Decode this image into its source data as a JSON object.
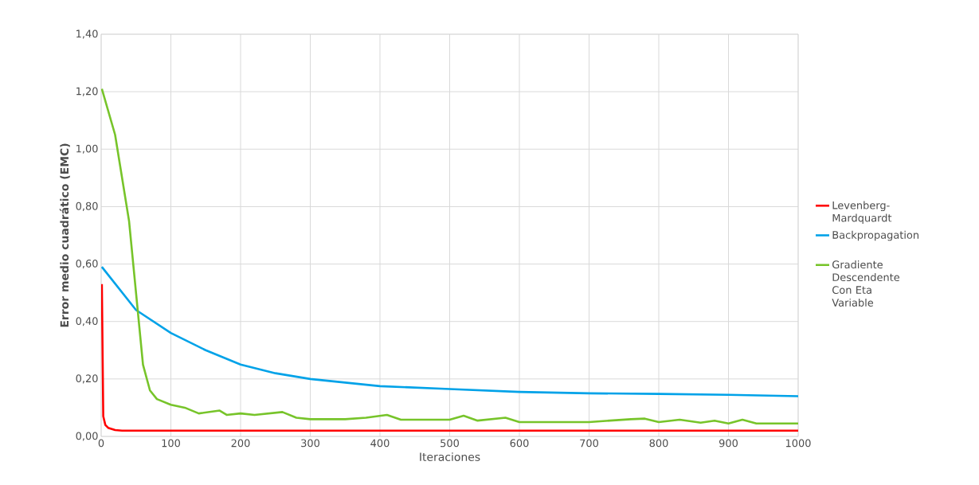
{
  "chart_data": {
    "type": "line",
    "xlabel": "Iteraciones",
    "ylabel": "Error medio cuadrático (EMC)",
    "xlim": [
      0,
      1000
    ],
    "ylim": [
      0,
      1.4
    ],
    "xticks": [
      0,
      100,
      200,
      300,
      400,
      500,
      600,
      700,
      800,
      900,
      1000
    ],
    "yticks": [
      {
        "value": 0,
        "label": "0,00"
      },
      {
        "value": 0.2,
        "label": "0,20"
      },
      {
        "value": 0.4,
        "label": "0,40"
      },
      {
        "value": 0.6,
        "label": "0,60"
      },
      {
        "value": 0.8,
        "label": "0,80"
      },
      {
        "value": 1.0,
        "label": "1,00"
      },
      {
        "value": 1.2,
        "label": "1,20"
      },
      {
        "value": 1.4,
        "label": "1,40"
      }
    ],
    "grid": true,
    "legend": "right",
    "marker": "none",
    "line_style": "solid",
    "series": [
      {
        "name": "Levenberg-Mardquardt",
        "color": "#ff0000",
        "x": [
          1,
          3,
          6,
          10,
          20,
          30,
          100,
          500,
          1000
        ],
        "values": [
          0.53,
          0.07,
          0.04,
          0.03,
          0.022,
          0.02,
          0.02,
          0.02,
          0.02
        ]
      },
      {
        "name": "Backpropagation",
        "color": "#00a2e8",
        "x": [
          1,
          50,
          100,
          150,
          200,
          250,
          300,
          400,
          500,
          600,
          700,
          800,
          900,
          1000
        ],
        "values": [
          0.59,
          0.44,
          0.36,
          0.3,
          0.25,
          0.22,
          0.2,
          0.175,
          0.165,
          0.155,
          0.15,
          0.148,
          0.145,
          0.14
        ]
      },
      {
        "name": "Gradiente Descendente Con Eta Variable",
        "color": "#77c42a",
        "x": [
          1,
          20,
          40,
          50,
          60,
          70,
          80,
          100,
          120,
          140,
          170,
          180,
          200,
          220,
          260,
          280,
          300,
          350,
          380,
          410,
          430,
          500,
          520,
          540,
          580,
          600,
          700,
          760,
          780,
          800,
          830,
          860,
          880,
          900,
          920,
          940,
          1000
        ],
        "values": [
          1.21,
          1.05,
          0.75,
          0.5,
          0.25,
          0.16,
          0.13,
          0.11,
          0.1,
          0.08,
          0.09,
          0.075,
          0.08,
          0.075,
          0.085,
          0.065,
          0.06,
          0.06,
          0.065,
          0.075,
          0.058,
          0.058,
          0.072,
          0.055,
          0.065,
          0.05,
          0.05,
          0.06,
          0.062,
          0.05,
          0.058,
          0.048,
          0.055,
          0.045,
          0.058,
          0.045,
          0.045
        ]
      }
    ]
  }
}
